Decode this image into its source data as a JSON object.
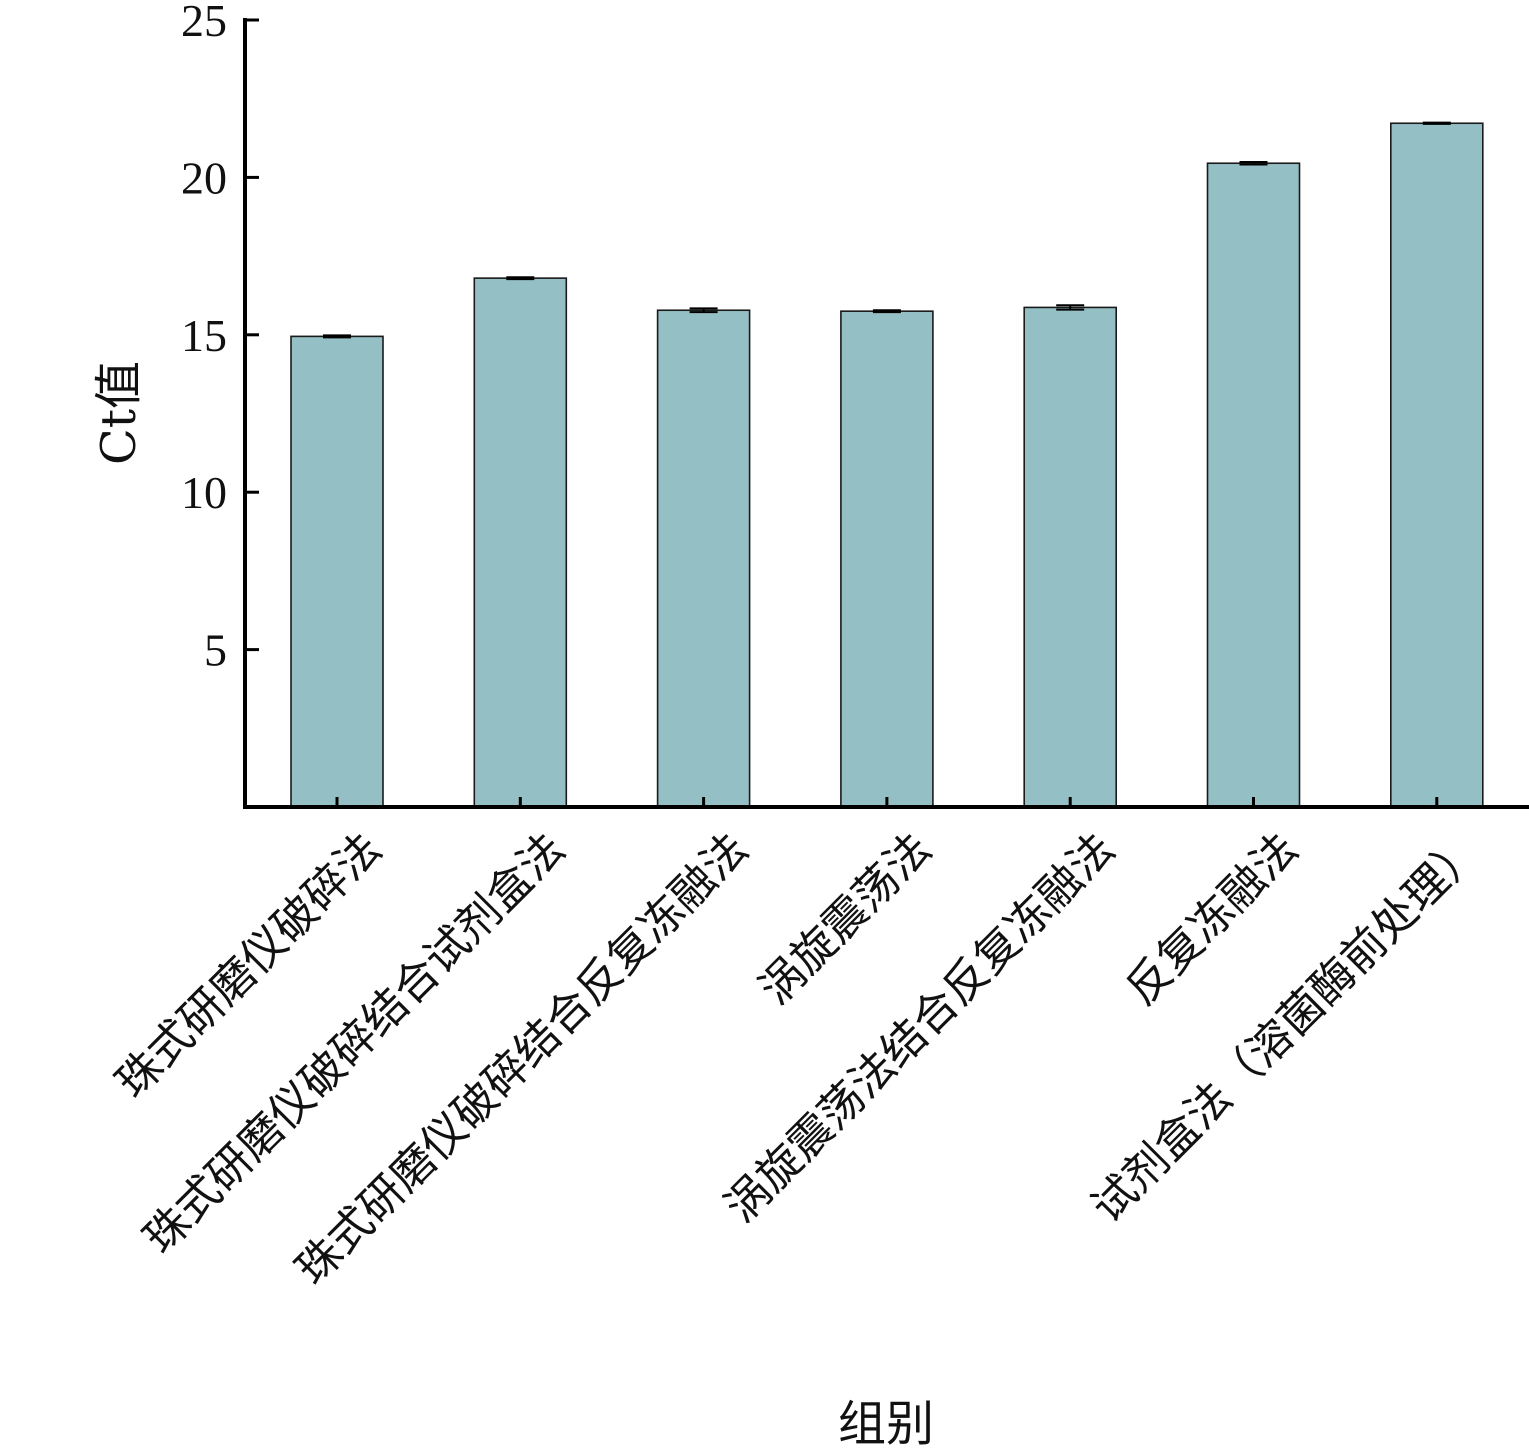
{
  "chart_data": {
    "type": "bar",
    "title": "",
    "xlabel": "组别",
    "ylabel": "Ct值",
    "ylim": [
      0,
      25
    ],
    "yticks": [
      5,
      10,
      15,
      20,
      25
    ],
    "grid": false,
    "bar_color": "#94c0c5",
    "categories": [
      "珠式研磨仪破碎法",
      "珠式研磨仪破碎结合试剂盒法",
      "珠式研磨仪破碎结合反复冻融法",
      "涡旋震荡法",
      "涡旋震荡法结合反复冻融法",
      "反复冻融法",
      "试剂盒法（溶菌酶前处理）"
    ],
    "values": [
      14.95,
      16.8,
      15.78,
      15.75,
      15.87,
      20.45,
      21.72
    ],
    "errors": [
      0.03,
      0.03,
      0.06,
      0.03,
      0.07,
      0.04,
      0.02
    ]
  }
}
